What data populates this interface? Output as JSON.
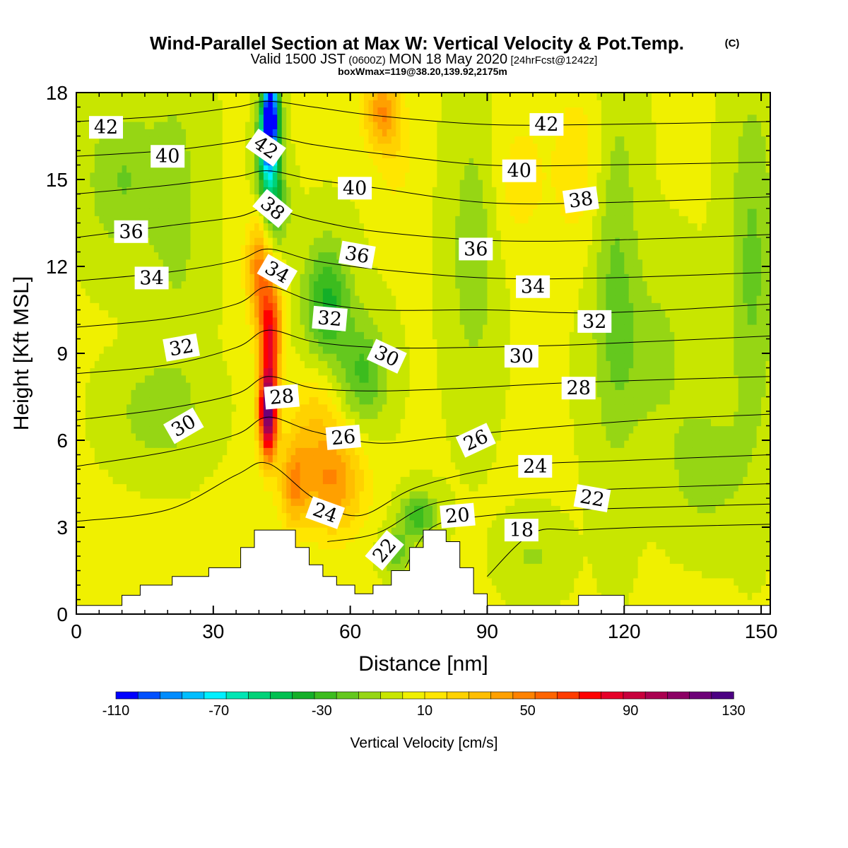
{
  "header": {
    "title": "Wind-Parallel Section at Max W: Vertical Velocity & Pot.Temp.",
    "title_mark": "(C)",
    "valid_a": "Valid 1500 JST",
    "valid_b": "(0600Z)",
    "valid_c": "MON 18 May 2020",
    "valid_d": "[24hrFcst@1242z]",
    "boxline": "boxWmax=119@38.20,139.92,2175m"
  },
  "chart_data": {
    "type": "heatmap",
    "title": "Wind-Parallel Section at Max W: Vertical Velocity & Pot.Temp.",
    "xlabel": "Distance [nm]",
    "ylabel": "Height [Kft MSL]",
    "xlim": [
      0,
      152
    ],
    "ylim": [
      0,
      18
    ],
    "x_ticks": [
      "0",
      "30",
      "60",
      "90",
      "120",
      "150"
    ],
    "x_tick_values": [
      0,
      30,
      60,
      90,
      120,
      150
    ],
    "y_ticks": [
      "0",
      "3",
      "6",
      "9",
      "12",
      "15",
      "18"
    ],
    "y_tick_values": [
      0,
      3,
      6,
      9,
      12,
      15,
      18
    ],
    "grid": false,
    "colorbar": {
      "label": "Vertical Velocity [cm/s]",
      "tick_labels": [
        "-110",
        "-70",
        "-30",
        "10",
        "50",
        "90",
        "130"
      ],
      "tick_values": [
        -110,
        -70,
        -30,
        10,
        50,
        90,
        130
      ],
      "min": -110,
      "max": 130,
      "colors": [
        "#0000ff",
        "#0050ff",
        "#008cff",
        "#00beff",
        "#00f0ff",
        "#00e6b4",
        "#00d278",
        "#00c050",
        "#14af28",
        "#3cbc1e",
        "#64c81e",
        "#96d614",
        "#c8e600",
        "#f0f000",
        "#ffe600",
        "#ffd200",
        "#ffbe00",
        "#ffa000",
        "#ff8200",
        "#ff6400",
        "#ff3c00",
        "#ff0000",
        "#e60028",
        "#c8003c",
        "#aa0050",
        "#8c0064",
        "#6e0078",
        "#4b0082"
      ]
    },
    "terrain_profile": [
      [
        0,
        0.3
      ],
      [
        10,
        0.3
      ],
      [
        10,
        0.65
      ],
      [
        14,
        0.65
      ],
      [
        14,
        1.0
      ],
      [
        21,
        1.0
      ],
      [
        21,
        1.3
      ],
      [
        29,
        1.3
      ],
      [
        29,
        1.6
      ],
      [
        36,
        1.6
      ],
      [
        36,
        2.3
      ],
      [
        39,
        2.3
      ],
      [
        39,
        2.9
      ],
      [
        48,
        2.9
      ],
      [
        48,
        2.3
      ],
      [
        51,
        2.3
      ],
      [
        51,
        1.7
      ],
      [
        54,
        1.7
      ],
      [
        54,
        1.3
      ],
      [
        57,
        1.3
      ],
      [
        57,
        1.0
      ],
      [
        61,
        1.0
      ],
      [
        61,
        0.7
      ],
      [
        65,
        0.7
      ],
      [
        65,
        1.0
      ],
      [
        69,
        1.0
      ],
      [
        69,
        1.5
      ],
      [
        73,
        1.5
      ],
      [
        73,
        2.3
      ],
      [
        76,
        2.3
      ],
      [
        76,
        2.9
      ],
      [
        81,
        2.9
      ],
      [
        81,
        2.5
      ],
      [
        84,
        2.5
      ],
      [
        84,
        1.6
      ],
      [
        87,
        1.6
      ],
      [
        87,
        0.7
      ],
      [
        90,
        0.7
      ],
      [
        90,
        0.3
      ],
      [
        110,
        0.3
      ],
      [
        110,
        0.65
      ],
      [
        120,
        0.65
      ],
      [
        120,
        0.3
      ],
      [
        152,
        0.3
      ]
    ],
    "velocity_features": [
      {
        "x": 42,
        "y": 7.0,
        "value": 119,
        "sx": 2.0,
        "sy": 1.6
      },
      {
        "x": 42.5,
        "y": 9.8,
        "value": 70,
        "sx": 2.5,
        "sy": 1.6
      },
      {
        "x": 40,
        "y": 12.0,
        "value": 45,
        "sx": 2.8,
        "sy": 1.8
      },
      {
        "x": 47.5,
        "y": 4.5,
        "value": 35,
        "sx": 3.0,
        "sy": 1.6
      },
      {
        "x": 56,
        "y": 4.6,
        "value": 42,
        "sx": 7.0,
        "sy": 1.8
      },
      {
        "x": 52,
        "y": 6.8,
        "value": 18,
        "sx": 5.0,
        "sy": 1.6
      },
      {
        "x": 67,
        "y": 17.4,
        "value": 42,
        "sx": 4.0,
        "sy": 1.3
      },
      {
        "x": 70,
        "y": 15.6,
        "value": 12,
        "sx": 4.0,
        "sy": 1.5
      },
      {
        "x": 42.5,
        "y": 17.4,
        "value": -120,
        "sx": 1.8,
        "sy": 1.3
      },
      {
        "x": 42,
        "y": 16.0,
        "value": -75,
        "sx": 2.2,
        "sy": 1.2
      },
      {
        "x": 43,
        "y": 14.2,
        "value": -42,
        "sx": 3.0,
        "sy": 1.4
      },
      {
        "x": 55,
        "y": 10.8,
        "value": -38,
        "sx": 5.0,
        "sy": 2.0
      },
      {
        "x": 63,
        "y": 8.3,
        "value": -28,
        "sx": 5.0,
        "sy": 1.8
      },
      {
        "x": 75,
        "y": 3.4,
        "value": -30,
        "sx": 4.0,
        "sy": 0.8
      },
      {
        "x": 70,
        "y": 2.2,
        "value": -25,
        "sx": 3.0,
        "sy": 0.7
      },
      {
        "x": 10,
        "y": 15.0,
        "value": -18,
        "sx": 8.0,
        "sy": 2.5
      },
      {
        "x": 22,
        "y": 14.0,
        "value": -12,
        "sx": 6.0,
        "sy": 5.0
      },
      {
        "x": 18,
        "y": 7.0,
        "value": -16,
        "sx": 9.0,
        "sy": 1.6
      },
      {
        "x": 87,
        "y": 12.5,
        "value": -16,
        "sx": 5.0,
        "sy": 4.5
      },
      {
        "x": 118,
        "y": 12.0,
        "value": -18,
        "sx": 5.0,
        "sy": 6.5
      },
      {
        "x": 148,
        "y": 12.0,
        "value": -20,
        "sx": 5.0,
        "sy": 6.0
      },
      {
        "x": 138,
        "y": 5.0,
        "value": -15,
        "sx": 8.0,
        "sy": 2.0
      },
      {
        "x": 126,
        "y": 9.0,
        "value": -12,
        "sx": 10.0,
        "sy": 3.0
      },
      {
        "x": 97,
        "y": 15.0,
        "value": 12,
        "sx": 6.0,
        "sy": 2.5
      },
      {
        "x": 110,
        "y": 15.5,
        "value": 14,
        "sx": 6.0,
        "sy": 3.0
      },
      {
        "x": 100,
        "y": 2.0,
        "value": -10,
        "sx": 6.0,
        "sy": 1.2
      }
    ],
    "background_velocity": 2,
    "isentropes": [
      {
        "theta": 18,
        "points": [
          [
            90,
            1.3
          ],
          [
            100,
            2.8
          ],
          [
            110,
            2.9
          ],
          [
            125,
            3.0
          ],
          [
            152,
            3.1
          ]
        ]
      },
      {
        "theta": 20,
        "points": [
          [
            72,
            1.6
          ],
          [
            78,
            3.0
          ],
          [
            90,
            3.4
          ],
          [
            110,
            3.6
          ],
          [
            130,
            3.7
          ],
          [
            152,
            3.8
          ]
        ]
      },
      {
        "theta": 22,
        "points": [
          [
            55,
            2.5
          ],
          [
            66,
            2.8
          ],
          [
            78,
            3.8
          ],
          [
            95,
            4.1
          ],
          [
            115,
            4.3
          ],
          [
            152,
            4.5
          ]
        ]
      },
      {
        "theta": 24,
        "points": [
          [
            0,
            3.2
          ],
          [
            20,
            3.6
          ],
          [
            35,
            4.8
          ],
          [
            42,
            5.2
          ],
          [
            52,
            4.0
          ],
          [
            62,
            3.4
          ],
          [
            75,
            4.4
          ],
          [
            95,
            5.1
          ],
          [
            120,
            5.3
          ],
          [
            152,
            5.5
          ]
        ]
      },
      {
        "theta": 26,
        "points": [
          [
            0,
            5.1
          ],
          [
            20,
            5.6
          ],
          [
            35,
            6.2
          ],
          [
            42,
            6.8
          ],
          [
            52,
            6.3
          ],
          [
            66,
            5.9
          ],
          [
            80,
            6.1
          ],
          [
            100,
            6.4
          ],
          [
            125,
            6.7
          ],
          [
            152,
            6.9
          ]
        ]
      },
      {
        "theta": 28,
        "points": [
          [
            0,
            6.7
          ],
          [
            20,
            7.1
          ],
          [
            35,
            7.6
          ],
          [
            42,
            8.2
          ],
          [
            52,
            7.8
          ],
          [
            66,
            7.7
          ],
          [
            85,
            7.8
          ],
          [
            110,
            8.0
          ],
          [
            152,
            8.2
          ]
        ]
      },
      {
        "theta": 30,
        "points": [
          [
            0,
            8.3
          ],
          [
            20,
            8.6
          ],
          [
            35,
            9.2
          ],
          [
            42,
            9.8
          ],
          [
            52,
            9.4
          ],
          [
            66,
            9.2
          ],
          [
            85,
            9.2
          ],
          [
            110,
            9.3
          ],
          [
            152,
            9.6
          ]
        ]
      },
      {
        "theta": 32,
        "points": [
          [
            0,
            9.9
          ],
          [
            20,
            10.2
          ],
          [
            35,
            10.7
          ],
          [
            42,
            11.3
          ],
          [
            52,
            10.8
          ],
          [
            66,
            10.5
          ],
          [
            90,
            10.5
          ],
          [
            115,
            10.4
          ],
          [
            152,
            10.7
          ]
        ]
      },
      {
        "theta": 34,
        "points": [
          [
            0,
            11.5
          ],
          [
            20,
            11.8
          ],
          [
            35,
            12.2
          ],
          [
            42,
            12.6
          ],
          [
            52,
            12.2
          ],
          [
            66,
            11.9
          ],
          [
            90,
            11.6
          ],
          [
            115,
            11.6
          ],
          [
            152,
            11.8
          ]
        ]
      },
      {
        "theta": 36,
        "points": [
          [
            0,
            13.0
          ],
          [
            20,
            13.4
          ],
          [
            35,
            13.7
          ],
          [
            42,
            14.0
          ],
          [
            52,
            13.6
          ],
          [
            66,
            13.2
          ],
          [
            90,
            12.9
          ],
          [
            115,
            12.9
          ],
          [
            152,
            13.1
          ]
        ]
      },
      {
        "theta": 38,
        "points": [
          [
            0,
            14.5
          ],
          [
            20,
            14.8
          ],
          [
            35,
            15.1
          ],
          [
            42,
            15.3
          ],
          [
            52,
            15.0
          ],
          [
            66,
            14.7
          ],
          [
            90,
            14.2
          ],
          [
            115,
            14.2
          ],
          [
            152,
            14.4
          ]
        ]
      },
      {
        "theta": 40,
        "points": [
          [
            0,
            15.8
          ],
          [
            20,
            16.0
          ],
          [
            35,
            16.3
          ],
          [
            42,
            16.5
          ],
          [
            52,
            16.2
          ],
          [
            66,
            15.9
          ],
          [
            90,
            15.5
          ],
          [
            115,
            15.5
          ],
          [
            152,
            15.6
          ]
        ]
      },
      {
        "theta": 42,
        "points": [
          [
            0,
            17.0
          ],
          [
            20,
            17.2
          ],
          [
            35,
            17.5
          ],
          [
            42,
            17.7
          ],
          [
            52,
            17.5
          ],
          [
            66,
            17.2
          ],
          [
            90,
            16.9
          ],
          [
            115,
            16.9
          ],
          [
            152,
            17.0
          ]
        ]
      }
    ],
    "isentrope_labels": [
      {
        "text": "42",
        "x": 6.5,
        "y": 16.8,
        "rot": 0
      },
      {
        "text": "40",
        "x": 20,
        "y": 15.8,
        "rot": 0
      },
      {
        "text": "36",
        "x": 12,
        "y": 13.2,
        "rot": 0
      },
      {
        "text": "34",
        "x": 16.5,
        "y": 11.6,
        "rot": 0
      },
      {
        "text": "32",
        "x": 23,
        "y": 9.2,
        "rot": -10
      },
      {
        "text": "30",
        "x": 23.5,
        "y": 6.5,
        "rot": -30
      },
      {
        "text": "42",
        "x": 41.5,
        "y": 16.1,
        "rot": 35
      },
      {
        "text": "38",
        "x": 43,
        "y": 14.0,
        "rot": 40
      },
      {
        "text": "34",
        "x": 44,
        "y": 11.8,
        "rot": 30
      },
      {
        "text": "28",
        "x": 45,
        "y": 7.5,
        "rot": -5
      },
      {
        "text": "40",
        "x": 61,
        "y": 14.7,
        "rot": 0
      },
      {
        "text": "36",
        "x": 61.5,
        "y": 12.4,
        "rot": 10
      },
      {
        "text": "32",
        "x": 55.5,
        "y": 10.2,
        "rot": 5
      },
      {
        "text": "30",
        "x": 68,
        "y": 8.9,
        "rot": 25
      },
      {
        "text": "26",
        "x": 58.5,
        "y": 6.1,
        "rot": -5
      },
      {
        "text": "24",
        "x": 54.5,
        "y": 3.5,
        "rot": 20
      },
      {
        "text": "22",
        "x": 67.5,
        "y": 2.2,
        "rot": -50
      },
      {
        "text": "20",
        "x": 83.5,
        "y": 3.4,
        "rot": -5
      },
      {
        "text": "18",
        "x": 97.5,
        "y": 2.9,
        "rot": 0
      },
      {
        "text": "26",
        "x": 87.5,
        "y": 6.0,
        "rot": -25
      },
      {
        "text": "24",
        "x": 100.5,
        "y": 5.1,
        "rot": 0
      },
      {
        "text": "22",
        "x": 113,
        "y": 4.0,
        "rot": 10
      },
      {
        "text": "36",
        "x": 87.5,
        "y": 12.6,
        "rot": 0
      },
      {
        "text": "34",
        "x": 100,
        "y": 11.3,
        "rot": 0
      },
      {
        "text": "30",
        "x": 97.5,
        "y": 8.9,
        "rot": 0
      },
      {
        "text": "28",
        "x": 110,
        "y": 7.8,
        "rot": 0
      },
      {
        "text": "32",
        "x": 113.5,
        "y": 10.1,
        "rot": 0
      },
      {
        "text": "40",
        "x": 97,
        "y": 15.3,
        "rot": 0
      },
      {
        "text": "42",
        "x": 103,
        "y": 16.9,
        "rot": 0
      },
      {
        "text": "38",
        "x": 110.5,
        "y": 14.3,
        "rot": -8
      }
    ]
  }
}
